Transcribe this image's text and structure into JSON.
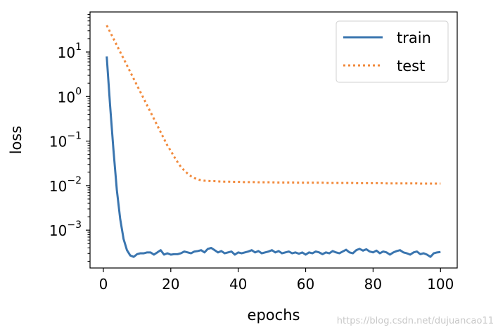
{
  "chart_data": {
    "type": "line",
    "xlabel": "epochs",
    "ylabel": "loss",
    "xlim": [
      -3.95,
      104.95
    ],
    "ylim_log10": [
      -3.85,
      1.9
    ],
    "yscale": "log",
    "x_ticks": [
      0,
      20,
      40,
      60,
      80,
      100
    ],
    "y_ticks": [
      {
        "base": "10",
        "exp": "1",
        "log10": 1
      },
      {
        "base": "10",
        "exp": "0",
        "log10": 0
      },
      {
        "base": "10",
        "exp": "−1",
        "log10": -1
      },
      {
        "base": "10",
        "exp": "−2",
        "log10": -2
      },
      {
        "base": "10",
        "exp": "−3",
        "log10": -3
      }
    ],
    "legend": {
      "position": "top-right"
    },
    "series": [
      {
        "name": "train",
        "color": "#3a75af",
        "style": "solid",
        "log10_values": [
          0.9,
          -0.2,
          -1.2,
          -2.1,
          -2.75,
          -3.2,
          -3.45,
          -3.57,
          -3.6,
          -3.54,
          -3.52,
          -3.52,
          -3.5,
          -3.5,
          -3.55,
          -3.5,
          -3.45,
          -3.55,
          -3.52,
          -3.55,
          -3.54,
          -3.54,
          -3.52,
          -3.48,
          -3.5,
          -3.52,
          -3.48,
          -3.47,
          -3.45,
          -3.5,
          -3.42,
          -3.4,
          -3.45,
          -3.5,
          -3.47,
          -3.52,
          -3.5,
          -3.48,
          -3.55,
          -3.5,
          -3.52,
          -3.5,
          -3.48,
          -3.45,
          -3.5,
          -3.47,
          -3.52,
          -3.5,
          -3.48,
          -3.45,
          -3.5,
          -3.47,
          -3.52,
          -3.5,
          -3.48,
          -3.52,
          -3.5,
          -3.53,
          -3.5,
          -3.55,
          -3.5,
          -3.52,
          -3.48,
          -3.5,
          -3.54,
          -3.5,
          -3.52,
          -3.47,
          -3.5,
          -3.52,
          -3.48,
          -3.44,
          -3.5,
          -3.52,
          -3.45,
          -3.42,
          -3.46,
          -3.43,
          -3.48,
          -3.5,
          -3.46,
          -3.52,
          -3.48,
          -3.5,
          -3.55,
          -3.5,
          -3.47,
          -3.45,
          -3.5,
          -3.52,
          -3.55,
          -3.5,
          -3.48,
          -3.54,
          -3.52,
          -3.55,
          -3.6,
          -3.52,
          -3.5,
          -3.49
        ]
      },
      {
        "name": "test",
        "color": "#f28a3c",
        "style": "dotted",
        "log10_values": [
          1.6,
          1.45,
          1.3,
          1.15,
          1.0,
          0.85,
          0.7,
          0.55,
          0.4,
          0.25,
          0.1,
          -0.05,
          -0.2,
          -0.35,
          -0.5,
          -0.65,
          -0.8,
          -0.95,
          -1.1,
          -1.22,
          -1.35,
          -1.47,
          -1.58,
          -1.66,
          -1.73,
          -1.79,
          -1.83,
          -1.86,
          -1.88,
          -1.89,
          -1.895,
          -1.9,
          -1.9,
          -1.905,
          -1.91,
          -1.91,
          -1.91,
          -1.915,
          -1.915,
          -1.915,
          -1.92,
          -1.92,
          -1.92,
          -1.92,
          -1.92,
          -1.925,
          -1.925,
          -1.925,
          -1.925,
          -1.925,
          -1.93,
          -1.93,
          -1.93,
          -1.93,
          -1.93,
          -1.93,
          -1.93,
          -1.935,
          -1.935,
          -1.935,
          -1.935,
          -1.935,
          -1.935,
          -1.935,
          -1.935,
          -1.94,
          -1.94,
          -1.94,
          -1.94,
          -1.94,
          -1.94,
          -1.94,
          -1.94,
          -1.94,
          -1.945,
          -1.945,
          -1.945,
          -1.945,
          -1.945,
          -1.945,
          -1.945,
          -1.945,
          -1.945,
          -1.95,
          -1.95,
          -1.95,
          -1.95,
          -1.95,
          -1.95,
          -1.95,
          -1.95,
          -1.95,
          -1.95,
          -1.955,
          -1.955,
          -1.955,
          -1.955,
          -1.955,
          -1.955,
          -1.955
        ]
      }
    ]
  },
  "watermark": "https://blog.csdn.net/dujuancao11"
}
